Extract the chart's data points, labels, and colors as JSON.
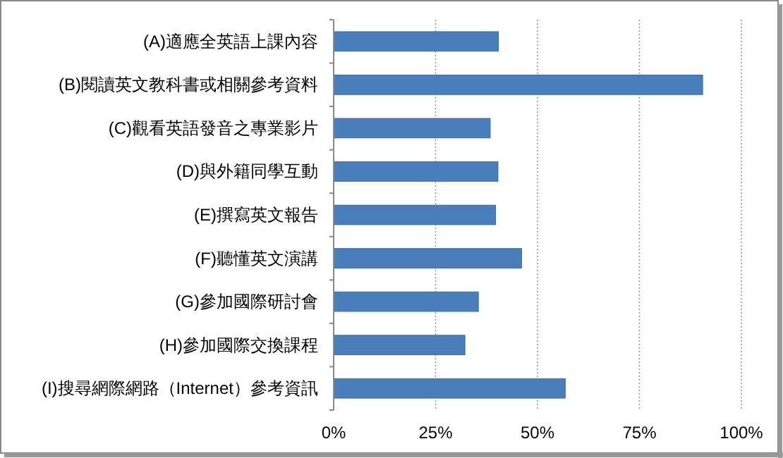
{
  "chart_data": {
    "type": "bar",
    "orientation": "horizontal",
    "categories": [
      "(A)適應全英語上課內容",
      "(B)閱讀英文教科書或相關參考資料",
      "(C)觀看英語發音之專業影片",
      "(D)與外籍同學互動",
      "(E)撰寫英文報告",
      "(F)聽懂英文演講",
      "(G)參加國際研討會",
      "(H)參加國際交換課程",
      "(I)搜尋網際網路（Internet）參考資訊"
    ],
    "series": [
      {
        "color": "#4a7ebb",
        "values": [
          40.4,
          90.5,
          38.4,
          40.3,
          39.7,
          46.1,
          35.5,
          32.2,
          56.8
        ]
      }
    ],
    "xlim": [
      0,
      100
    ],
    "xticks": [
      {
        "value": 0,
        "label": "0%"
      },
      {
        "value": 25,
        "label": "25%"
      },
      {
        "value": 50,
        "label": "50%"
      },
      {
        "value": 75,
        "label": "75%"
      },
      {
        "value": 100,
        "label": "100%"
      }
    ],
    "grid": "x"
  }
}
